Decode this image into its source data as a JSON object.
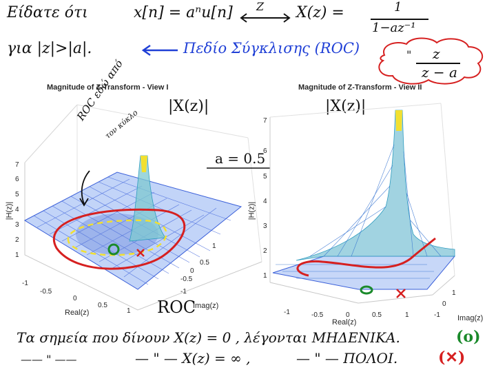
{
  "header": {
    "line1_prefix": "Είδατε ότι",
    "line1_expr": "x[n] = aⁿu[n]",
    "line1_arrow_label": "Z",
    "line1_result": "X(z) =",
    "line1_num": "1",
    "line1_den": "1−az⁻¹",
    "line2_prefix": "για |z|>|a|.",
    "roc_label": "Πεδίο Σύγκλισης (ROC)",
    "cloud_quote": "\"",
    "cloud_num": "z",
    "cloud_den": "z − a"
  },
  "left_plot": {
    "title": "Magnitude of Z-Transform - View I",
    "hand_label": "|X(z)|",
    "roc_note_1": "ROC εδώ από",
    "roc_note_2": "τον κύκλο",
    "roc_note_3": "κύκλο",
    "roc_bottom": "ROC",
    "y_label": "|H(z)|",
    "x_label": "Real(z)",
    "imag_label": "Imag(z)",
    "y_ticks": [
      "1",
      "2",
      "3",
      "4",
      "5",
      "6",
      "7"
    ],
    "x_ticks": [
      "-1",
      "-0.5",
      "0",
      "0.5",
      "1"
    ],
    "imag_ticks": [
      "-1",
      "-0.5",
      "0",
      "0.5",
      "1"
    ]
  },
  "right_plot": {
    "title": "Magnitude of Z-Transform - View II",
    "hand_label": "|X(z)|",
    "a_label": "a = 0.5",
    "y_label": "|H(z)|",
    "x_label": "Real(z)",
    "imag_label": "Imag(z)",
    "y_ticks": [
      "1",
      "2",
      "3",
      "4",
      "5",
      "6",
      "7"
    ],
    "x_ticks": [
      "-1",
      "-0.5",
      "0",
      "0.5",
      "1"
    ],
    "imag_ticks": [
      "-1",
      "0",
      "1"
    ]
  },
  "footer": {
    "line1": "Τα σημεία που δίνουν X(z) = 0 , λέγονται ΜΗΔΕΝΙΚΑ.",
    "line1_mark": "(o)",
    "line2_a": "—— \" ——",
    "line2_b": "— \" — X(z) = ∞ ,",
    "line2_c": "— \" — ΠΟΛΟΙ.",
    "line2_mark": "(✕)"
  },
  "colors": {
    "ink": "#101010",
    "blue": "#1f3fd6",
    "red": "#d62020",
    "green": "#1a8a2a",
    "mesh": "#3a5fd9",
    "yellow": "#f2e030"
  }
}
